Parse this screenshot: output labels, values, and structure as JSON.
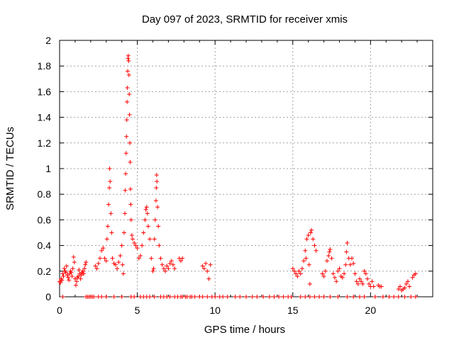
{
  "chart_data": {
    "type": "scatter",
    "title": "Day 097 of 2023, SRMTID for receiver xmis",
    "xlabel": "GPS time / hours",
    "ylabel": "SRMTID / TECUs",
    "xlim": [
      0,
      24
    ],
    "ylim": [
      0,
      2
    ],
    "xticks": [
      0,
      5,
      10,
      15,
      20
    ],
    "yticks": [
      0,
      0.2,
      0.4,
      0.6,
      0.8,
      1,
      1.2,
      1.4,
      1.6,
      1.8,
      2
    ],
    "xtick_labels": [
      "0",
      "5",
      "10",
      "15",
      "20"
    ],
    "ytick_labels": [
      "0",
      "0.2",
      "0.4",
      "0.6",
      "0.8",
      "1",
      "1.2",
      "1.4",
      "1.6",
      "1.8",
      "2"
    ],
    "grid": true,
    "marker": "+",
    "color": "#ff0000",
    "series": [
      {
        "name": "SRMTID",
        "points": [
          [
            0.0,
            0.12
          ],
          [
            0.05,
            0.11
          ],
          [
            0.1,
            0.14
          ],
          [
            0.15,
            0.13
          ],
          [
            0.2,
            0.18
          ],
          [
            0.25,
            0.16
          ],
          [
            0.3,
            0.22
          ],
          [
            0.35,
            0.2
          ],
          [
            0.4,
            0.19
          ],
          [
            0.45,
            0.24
          ],
          [
            0.5,
            0.17
          ],
          [
            0.55,
            0.15
          ],
          [
            0.6,
            0.13
          ],
          [
            0.65,
            0.18
          ],
          [
            0.7,
            0.2
          ],
          [
            0.75,
            0.19
          ],
          [
            0.8,
            0.16
          ],
          [
            0.85,
            0.22
          ],
          [
            0.9,
            0.31
          ],
          [
            0.95,
            0.27
          ],
          [
            1.0,
            0.14
          ],
          [
            1.05,
            0.09
          ],
          [
            1.1,
            0.12
          ],
          [
            1.15,
            0.15
          ],
          [
            1.2,
            0.16
          ],
          [
            1.25,
            0.21
          ],
          [
            1.3,
            0.18
          ],
          [
            1.35,
            0.14
          ],
          [
            1.4,
            0.17
          ],
          [
            1.45,
            0.19
          ],
          [
            1.5,
            0.2
          ],
          [
            1.55,
            0.18
          ],
          [
            1.6,
            0.22
          ],
          [
            1.65,
            0.25
          ],
          [
            1.7,
            0.27
          ],
          [
            2.3,
            0.24
          ],
          [
            2.4,
            0.22
          ],
          [
            2.5,
            0.26
          ],
          [
            2.6,
            0.3
          ],
          [
            2.7,
            0.36
          ],
          [
            2.8,
            0.38
          ],
          [
            2.9,
            0.3
          ],
          [
            3.0,
            0.28
          ],
          [
            3.05,
            0.45
          ],
          [
            3.1,
            0.55
          ],
          [
            3.15,
            0.72
          ],
          [
            3.2,
            0.85
          ],
          [
            3.22,
            1.0
          ],
          [
            3.25,
            0.9
          ],
          [
            3.3,
            0.65
          ],
          [
            3.35,
            0.5
          ],
          [
            3.4,
            0.3
          ],
          [
            3.5,
            0.26
          ],
          [
            3.6,
            0.25
          ],
          [
            3.7,
            0.22
          ],
          [
            3.8,
            0.27
          ],
          [
            3.9,
            0.32
          ],
          [
            4.0,
            0.4
          ],
          [
            4.05,
            0.25
          ],
          [
            4.1,
            0.18
          ],
          [
            4.15,
            0.5
          ],
          [
            4.2,
            0.65
          ],
          [
            4.22,
            0.83
          ],
          [
            4.25,
            0.96
          ],
          [
            4.28,
            1.12
          ],
          [
            4.3,
            1.25
          ],
          [
            4.32,
            1.38
          ],
          [
            4.34,
            1.52
          ],
          [
            4.36,
            1.63
          ],
          [
            4.38,
            1.76
          ],
          [
            4.4,
            1.86
          ],
          [
            4.42,
            1.88
          ],
          [
            4.44,
            1.84
          ],
          [
            4.46,
            1.73
          ],
          [
            4.48,
            1.58
          ],
          [
            4.5,
            1.42
          ],
          [
            4.52,
            1.2
          ],
          [
            4.54,
            1.05
          ],
          [
            4.56,
            0.84
          ],
          [
            4.58,
            0.72
          ],
          [
            4.6,
            0.6
          ],
          [
            4.65,
            0.48
          ],
          [
            4.7,
            0.45
          ],
          [
            4.8,
            0.42
          ],
          [
            4.9,
            0.4
          ],
          [
            5.0,
            0.38
          ],
          [
            5.1,
            0.3
          ],
          [
            5.2,
            0.32
          ],
          [
            5.3,
            0.4
          ],
          [
            5.4,
            0.5
          ],
          [
            5.5,
            0.6
          ],
          [
            5.55,
            0.68
          ],
          [
            5.6,
            0.7
          ],
          [
            5.65,
            0.65
          ],
          [
            5.7,
            0.55
          ],
          [
            5.8,
            0.45
          ],
          [
            5.9,
            0.3
          ],
          [
            6.0,
            0.2
          ],
          [
            6.05,
            0.22
          ],
          [
            6.1,
            0.45
          ],
          [
            6.15,
            0.6
          ],
          [
            6.2,
            0.75
          ],
          [
            6.22,
            0.85
          ],
          [
            6.24,
            0.95
          ],
          [
            6.26,
            0.9
          ],
          [
            6.3,
            0.7
          ],
          [
            6.35,
            0.55
          ],
          [
            6.4,
            0.4
          ],
          [
            6.5,
            0.3
          ],
          [
            6.6,
            0.25
          ],
          [
            6.7,
            0.22
          ],
          [
            6.8,
            0.2
          ],
          [
            6.9,
            0.24
          ],
          [
            7.0,
            0.22
          ],
          [
            7.1,
            0.26
          ],
          [
            7.2,
            0.28
          ],
          [
            7.3,
            0.25
          ],
          [
            7.4,
            0.22
          ],
          [
            7.7,
            0.3
          ],
          [
            7.8,
            0.28
          ],
          [
            7.9,
            0.3
          ],
          [
            9.2,
            0.24
          ],
          [
            9.3,
            0.22
          ],
          [
            9.4,
            0.26
          ],
          [
            9.5,
            0.2
          ],
          [
            9.6,
            0.14
          ],
          [
            9.7,
            0.25
          ],
          [
            15.0,
            0.22
          ],
          [
            15.1,
            0.2
          ],
          [
            15.2,
            0.18
          ],
          [
            15.3,
            0.16
          ],
          [
            15.4,
            0.2
          ],
          [
            15.5,
            0.18
          ],
          [
            15.6,
            0.22
          ],
          [
            15.7,
            0.28
          ],
          [
            15.8,
            0.36
          ],
          [
            15.85,
            0.3
          ],
          [
            15.9,
            0.45
          ],
          [
            16.0,
            0.48
          ],
          [
            16.05,
            0.25
          ],
          [
            16.1,
            0.1
          ],
          [
            16.15,
            0.5
          ],
          [
            16.2,
            0.52
          ],
          [
            16.3,
            0.45
          ],
          [
            16.4,
            0.4
          ],
          [
            16.5,
            0.36
          ],
          [
            16.9,
            0.18
          ],
          [
            17.0,
            0.16
          ],
          [
            17.1,
            0.2
          ],
          [
            17.2,
            0.28
          ],
          [
            17.3,
            0.32
          ],
          [
            17.35,
            0.35
          ],
          [
            17.4,
            0.37
          ],
          [
            17.5,
            0.3
          ],
          [
            17.6,
            0.18
          ],
          [
            17.7,
            0.15
          ],
          [
            17.8,
            0.12
          ],
          [
            17.9,
            0.2
          ],
          [
            18.0,
            0.22
          ],
          [
            18.1,
            0.16
          ],
          [
            18.2,
            0.15
          ],
          [
            18.3,
            0.18
          ],
          [
            18.4,
            0.25
          ],
          [
            18.45,
            0.35
          ],
          [
            18.5,
            0.42
          ],
          [
            18.6,
            0.3
          ],
          [
            18.7,
            0.25
          ],
          [
            18.8,
            0.3
          ],
          [
            18.9,
            0.26
          ],
          [
            19.0,
            0.18
          ],
          [
            19.1,
            0.12
          ],
          [
            19.2,
            0.1
          ],
          [
            19.3,
            0.14
          ],
          [
            19.4,
            0.12
          ],
          [
            19.5,
            0.1
          ],
          [
            19.6,
            0.2
          ],
          [
            19.7,
            0.18
          ],
          [
            19.8,
            0.14
          ],
          [
            19.9,
            0.1
          ],
          [
            20.0,
            0.08
          ],
          [
            20.1,
            0.12
          ],
          [
            20.2,
            0.08
          ],
          [
            20.5,
            0.09
          ],
          [
            20.6,
            0.08
          ],
          [
            20.7,
            0.08
          ],
          [
            21.8,
            0.06
          ],
          [
            21.9,
            0.08
          ],
          [
            22.0,
            0.05
          ],
          [
            22.1,
            0.06
          ],
          [
            22.2,
            0.07
          ],
          [
            22.3,
            0.1
          ],
          [
            22.4,
            0.12
          ],
          [
            22.5,
            0.08
          ],
          [
            22.7,
            0.15
          ],
          [
            22.8,
            0.17
          ],
          [
            22.9,
            0.18
          ],
          [
            0.2,
            0.0
          ],
          [
            1.7,
            0.0
          ],
          [
            1.8,
            0.0
          ],
          [
            1.9,
            0.0
          ],
          [
            2.0,
            0.0
          ],
          [
            2.1,
            0.0
          ],
          [
            2.2,
            0.0
          ],
          [
            2.5,
            0.0
          ],
          [
            2.7,
            0.0
          ],
          [
            3.0,
            0.0
          ],
          [
            3.5,
            0.0
          ],
          [
            4.0,
            0.0
          ],
          [
            4.6,
            0.0
          ],
          [
            4.8,
            0.0
          ],
          [
            5.2,
            0.0
          ],
          [
            5.4,
            0.0
          ],
          [
            5.6,
            0.0
          ],
          [
            5.8,
            0.0
          ],
          [
            6.1,
            0.0
          ],
          [
            6.5,
            0.0
          ],
          [
            6.7,
            0.0
          ],
          [
            6.9,
            0.0
          ],
          [
            7.1,
            0.0
          ],
          [
            7.4,
            0.0
          ],
          [
            7.6,
            0.0
          ],
          [
            7.8,
            0.0
          ],
          [
            7.9,
            0.0
          ],
          [
            8.1,
            0.0
          ],
          [
            8.2,
            0.0
          ],
          [
            8.4,
            0.0
          ],
          [
            8.5,
            0.0
          ],
          [
            8.7,
            0.0
          ],
          [
            9.0,
            0.0
          ],
          [
            9.2,
            0.0
          ],
          [
            9.5,
            0.0
          ],
          [
            9.8,
            0.0
          ],
          [
            10.0,
            0.0
          ],
          [
            10.3,
            0.0
          ],
          [
            10.5,
            0.0
          ],
          [
            10.8,
            0.0
          ],
          [
            11.3,
            0.0
          ],
          [
            11.6,
            0.0
          ],
          [
            12.0,
            0.0
          ],
          [
            12.4,
            0.0
          ],
          [
            12.7,
            0.0
          ],
          [
            13.1,
            0.0
          ],
          [
            13.5,
            0.0
          ],
          [
            13.8,
            0.0
          ],
          [
            14.1,
            0.0
          ],
          [
            14.4,
            0.0
          ],
          [
            14.7,
            0.0
          ],
          [
            14.9,
            0.0
          ],
          [
            15.5,
            0.0
          ],
          [
            15.8,
            0.0
          ],
          [
            16.1,
            0.0
          ],
          [
            16.4,
            0.0
          ],
          [
            16.7,
            0.0
          ],
          [
            17.0,
            0.0
          ],
          [
            17.4,
            0.0
          ],
          [
            17.9,
            0.0
          ],
          [
            18.5,
            0.0
          ],
          [
            18.9,
            0.0
          ],
          [
            19.3,
            0.0
          ],
          [
            19.6,
            0.0
          ],
          [
            20.3,
            0.0
          ],
          [
            20.8,
            0.0
          ],
          [
            21.2,
            0.0
          ],
          [
            21.5,
            0.0
          ],
          [
            21.8,
            0.0
          ],
          [
            22.2,
            0.0
          ],
          [
            22.6,
            0.0
          ],
          [
            22.9,
            0.0
          ]
        ]
      }
    ]
  }
}
